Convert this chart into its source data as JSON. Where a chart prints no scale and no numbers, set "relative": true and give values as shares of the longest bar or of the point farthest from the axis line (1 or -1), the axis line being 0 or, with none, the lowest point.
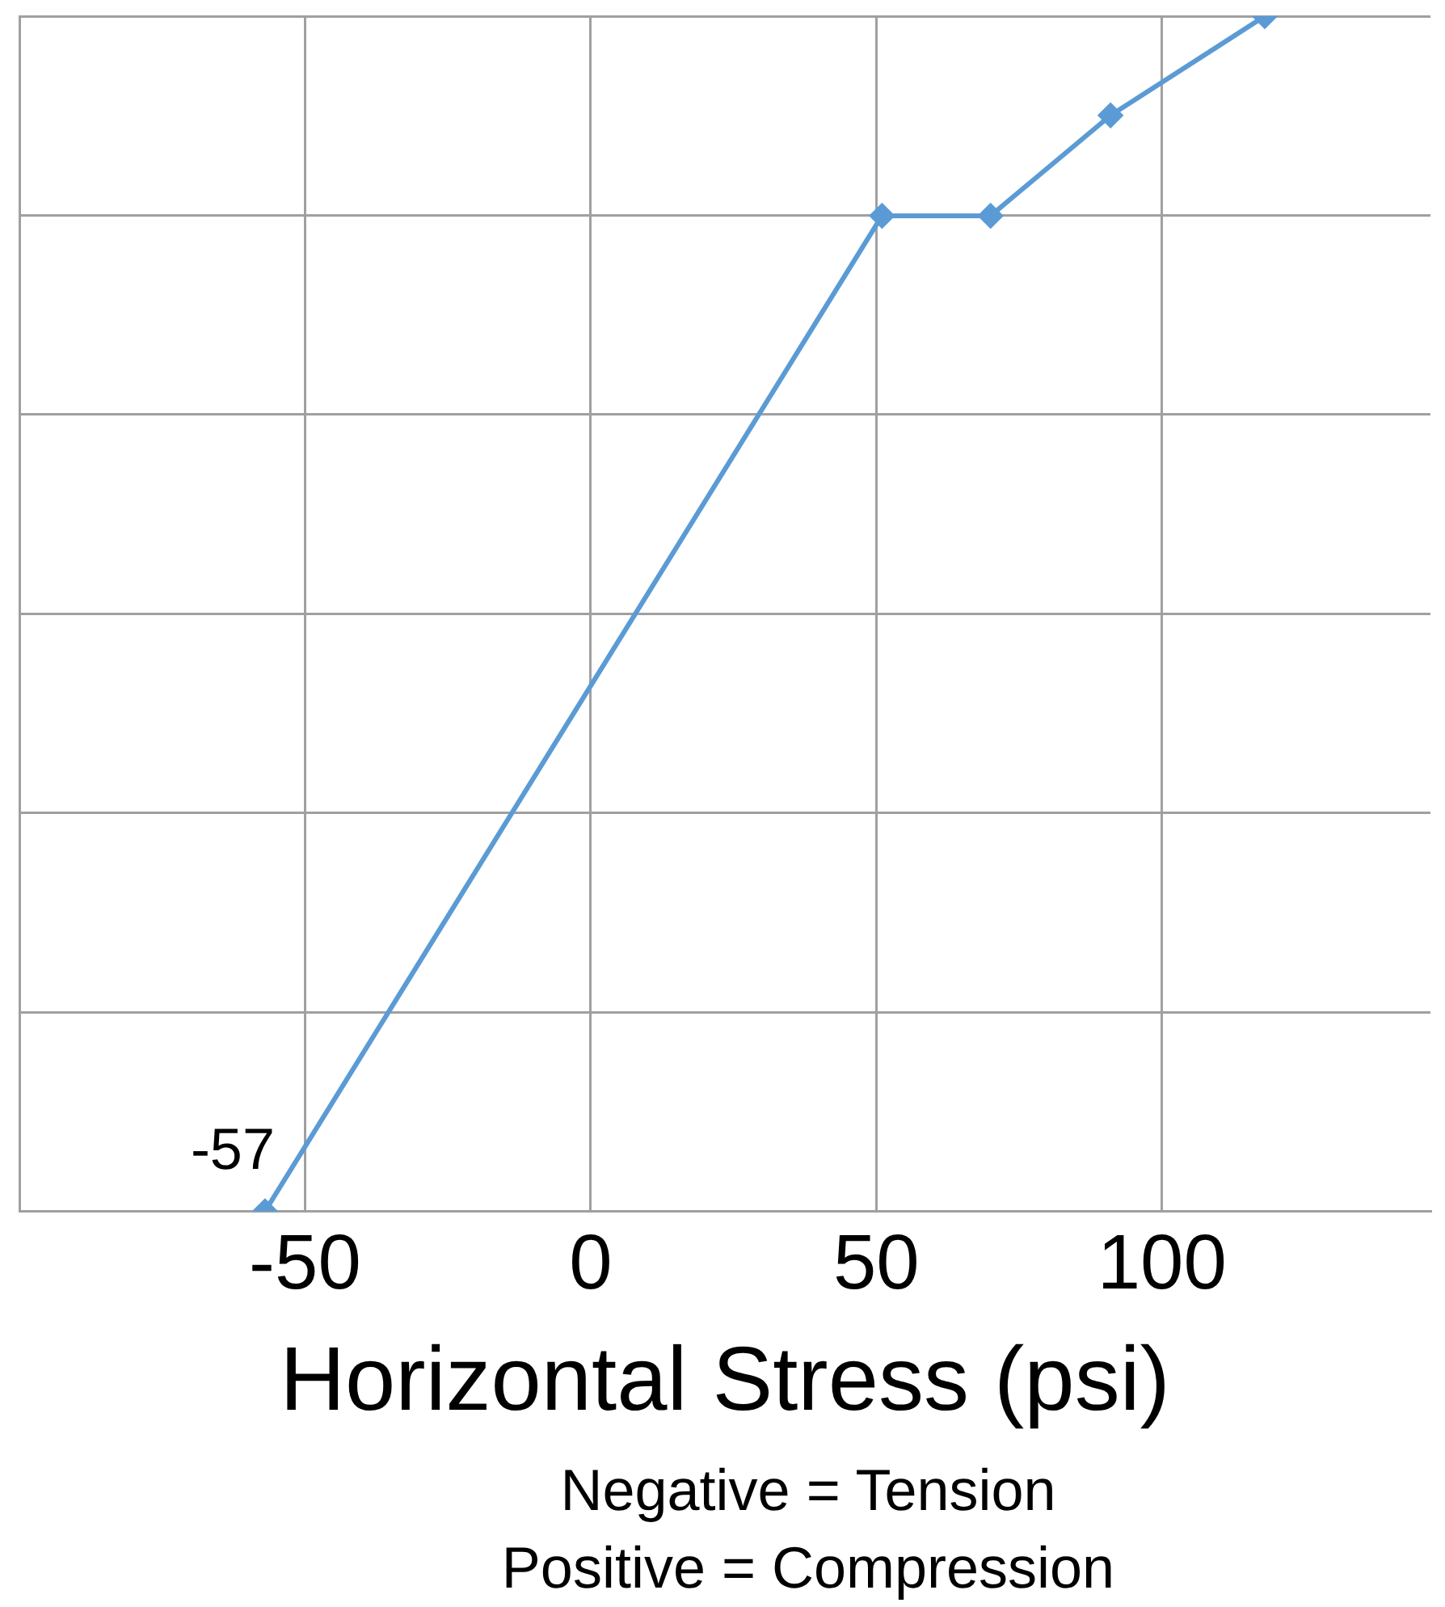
{
  "chart_data": {
    "type": "line",
    "relative": true,
    "xlabel": "Horizontal Stress (psi)",
    "x": [
      -57,
      51,
      70,
      91,
      118
    ],
    "series": [
      {
        "color": "#5b9bd5",
        "values": [
          0,
          0.833,
          0.833,
          0.917,
          1
        ]
      }
    ],
    "xlim": [
      -100,
      147
    ],
    "xticks": [
      -50,
      0,
      50,
      100
    ],
    "grid": true,
    "legend": false,
    "marker": "diamond",
    "line_style": "solid",
    "annotations": [
      {
        "text": "-57",
        "x": -57,
        "y": 0
      },
      "Negative = Tension",
      "Positive = Compression"
    ]
  }
}
